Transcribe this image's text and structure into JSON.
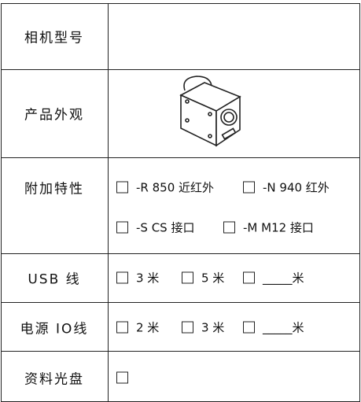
{
  "table": {
    "rows": [
      {
        "label": "相机型号"
      },
      {
        "label": "产品外观"
      },
      {
        "label": "附加特性",
        "options": [
          "-R 850 近红外",
          "-N 940 红外",
          "-S CS 接口",
          "-M M12 接口"
        ]
      },
      {
        "label": "USB 线",
        "options": [
          "3 米",
          "5 米",
          "_____米"
        ]
      },
      {
        "label": "电源 IO线",
        "options": [
          "2 米",
          "3 米",
          "_____米"
        ]
      },
      {
        "label": "资料光盘"
      }
    ]
  }
}
